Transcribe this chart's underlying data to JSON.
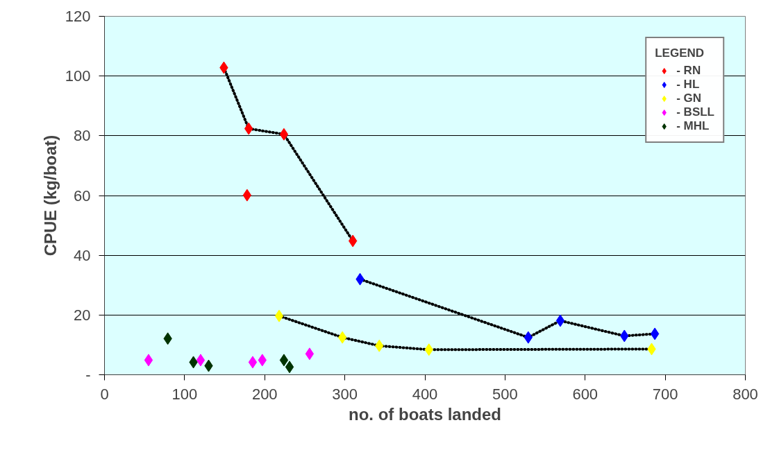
{
  "chart_data": {
    "type": "scatter",
    "xlabel": "no. of boats landed",
    "ylabel": "CPUE (kg/boat)",
    "legend_title": "LEGEND",
    "xlim": [
      0,
      800
    ],
    "xticks": [
      0,
      100,
      200,
      300,
      400,
      500,
      600,
      700,
      800
    ],
    "ylim": [
      0,
      120
    ],
    "yticks": [
      {
        "value": 0,
        "label": "-"
      },
      20,
      40,
      60,
      80,
      100,
      120
    ],
    "grid": "y",
    "legend": "top right",
    "marker": "diamond",
    "series": [
      {
        "name": "- RN",
        "color": "#ff0000",
        "x": [
          149,
          180,
          224,
          178,
          310
        ],
        "values": [
          102.8,
          82.4,
          80.5,
          60.1,
          44.8
        ]
      },
      {
        "name": "- HL",
        "color": "#0000ff",
        "x": [
          319,
          529,
          569,
          649,
          687
        ],
        "values": [
          32.0,
          12.5,
          18.1,
          13.0,
          13.7
        ]
      },
      {
        "name": "- GN",
        "color": "#ffff00",
        "x": [
          218,
          297,
          343,
          405,
          683
        ],
        "values": [
          19.7,
          12.5,
          9.7,
          8.4,
          8.6
        ]
      },
      {
        "name": "- BSLL",
        "color": "#ff00ff",
        "x": [
          55,
          120,
          185,
          197,
          256
        ],
        "values": [
          4.9,
          4.9,
          4.2,
          4.9,
          7.0
        ]
      },
      {
        "name": "- MHL",
        "color": "#003300",
        "x": [
          79,
          111,
          130,
          224,
          231
        ],
        "values": [
          12.1,
          4.2,
          3.0,
          4.9,
          2.6
        ]
      },
      {
        "type": "line",
        "color": "#000000",
        "line_style": "dotted",
        "marker": "none",
        "x": [
          149,
          180,
          224,
          310
        ],
        "values": [
          102.8,
          82.4,
          80.5,
          44.8
        ]
      },
      {
        "type": "line",
        "color": "#000000",
        "line_style": "dotted",
        "marker": "none",
        "x": [
          319,
          529,
          569,
          649,
          687
        ],
        "values": [
          32.0,
          12.5,
          18.1,
          13.0,
          13.7
        ]
      },
      {
        "type": "line",
        "color": "#000000",
        "line_style": "dotted",
        "marker": "none",
        "x": [
          218,
          297,
          343,
          405,
          683
        ],
        "values": [
          19.7,
          12.5,
          9.7,
          8.4,
          8.6
        ]
      }
    ]
  }
}
